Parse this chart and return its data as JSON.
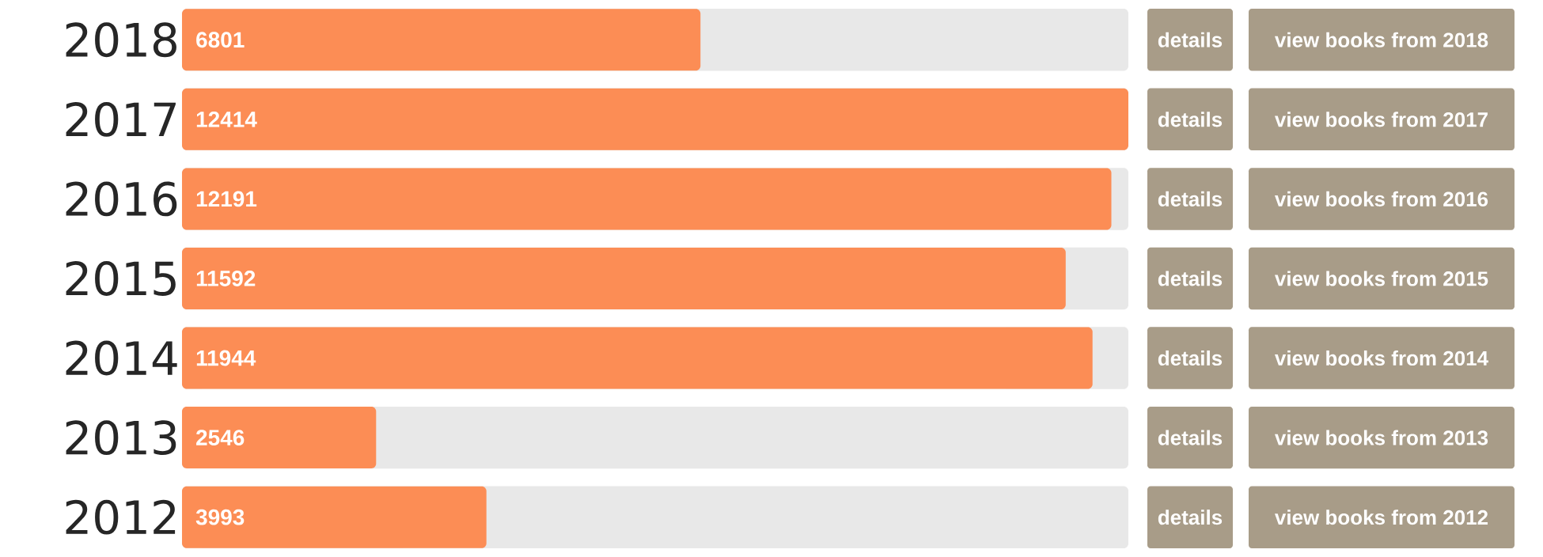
{
  "chart_data": {
    "type": "bar",
    "orientation": "horizontal",
    "categories": [
      "2018",
      "2017",
      "2016",
      "2015",
      "2014",
      "2013",
      "2012"
    ],
    "values": [
      6801,
      12414,
      12191,
      11592,
      11944,
      2546,
      3993
    ],
    "color": "#fc8d55",
    "data_labels": true,
    "annotations": [
      "details",
      "view books from 2018",
      "details",
      "view books from 2017",
      "details",
      "view books from 2016",
      "details",
      "view books from 2015",
      "details",
      "view books from 2014",
      "details",
      "view books from 2013",
      "details",
      "view books from 2012"
    ]
  }
}
